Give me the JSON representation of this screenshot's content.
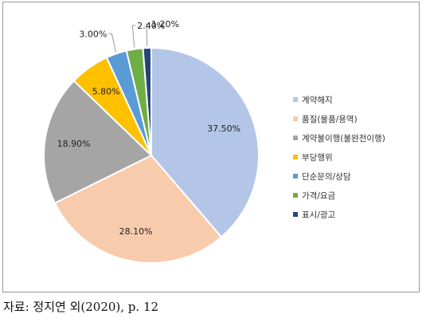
{
  "chart_data": {
    "type": "pie",
    "slices": [
      {
        "label": "계약해지",
        "value": 37.5,
        "display": "37.50%",
        "color": "#b4c6e7"
      },
      {
        "label": "품질(물품/용역)",
        "value": 28.1,
        "display": "28.10%",
        "color": "#f8cbad"
      },
      {
        "label": "계약불이행(불완전이행)",
        "value": 18.9,
        "display": "18.90%",
        "color": "#a5a5a5"
      },
      {
        "label": "부당행위",
        "value": 5.8,
        "display": "5.80%",
        "color": "#ffc000"
      },
      {
        "label": "단순문의/상담",
        "value": 3.0,
        "display": "3.00%",
        "color": "#5b9bd5"
      },
      {
        "label": "가격/요금",
        "value": 2.4,
        "display": "2.40%",
        "color": "#70ad47"
      },
      {
        "label": "표시/광고",
        "value": 1.2,
        "display": "1.20%",
        "color": "#264478"
      }
    ],
    "legend_position": "right"
  },
  "source_text": "자료: 정지연 외(2020), p. 12"
}
